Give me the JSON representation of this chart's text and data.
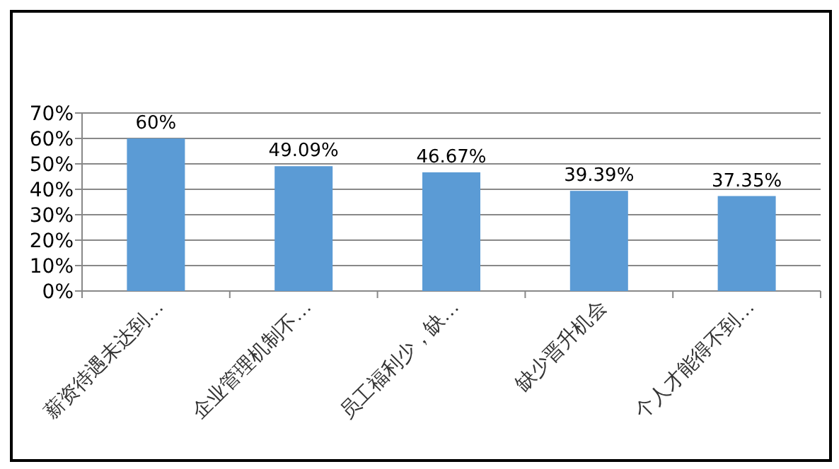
{
  "chart_data": {
    "type": "bar",
    "categories": [
      "薪资待遇未达到…",
      "企业管理机制不…",
      "员工福利少，缺…",
      "缺少晋升机会",
      "个人才能得不到…"
    ],
    "values": [
      60,
      49.09,
      46.67,
      39.39,
      37.35
    ],
    "value_labels": [
      "60%",
      "49.09%",
      "46.67%",
      "39.39%",
      "37.35%"
    ],
    "color": "#5b9bd5",
    "ylim": [
      0,
      70
    ],
    "yticks": [
      {
        "value": 0,
        "label": "0%"
      },
      {
        "value": 10,
        "label": "10%"
      },
      {
        "value": 20,
        "label": "20%"
      },
      {
        "value": 30,
        "label": "30%"
      },
      {
        "value": 40,
        "label": "40%"
      },
      {
        "value": 50,
        "label": "50%"
      },
      {
        "value": 60,
        "label": "60%"
      },
      {
        "value": 70,
        "label": "70%"
      }
    ],
    "grid": "y"
  }
}
